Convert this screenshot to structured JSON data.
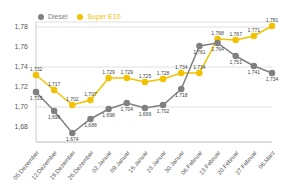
{
  "chart_data": {
    "type": "line",
    "categories": [
      "05.Dezember",
      "12.Dezember",
      "19.Dezember",
      "26.Dezember",
      "02.Januar",
      "09.Januar",
      "16.Januar",
      "23.Januar",
      "30.Januar",
      "06.Februar",
      "13.Februar",
      "20.Februar",
      "27.Februar",
      "06.März"
    ],
    "series": [
      {
        "name": "Super E10",
        "color": "#f2c200",
        "marker": "circle",
        "values": [
          1.732,
          1.717,
          1.702,
          1.707,
          1.729,
          1.729,
          1.725,
          1.728,
          1.734,
          1.734,
          1.768,
          1.767,
          1.771,
          1.781
        ],
        "value_labels": [
          "1,732",
          "1,717",
          "1,702",
          "1,707",
          "1,729",
          "1,729",
          "1,725",
          "1,728",
          "1,734",
          "1,734",
          "1,768",
          "1,767",
          "1,771",
          "1,781"
        ]
      },
      {
        "name": "Diesel",
        "color": "#808080",
        "marker": "circle",
        "values": [
          1.715,
          1.696,
          1.674,
          1.688,
          1.698,
          1.704,
          1.699,
          1.702,
          1.718,
          1.761,
          1.764,
          1.751,
          1.741,
          1.734
        ],
        "value_labels": [
          "1,715",
          "1,696",
          "1,674",
          "1,688",
          "1,698",
          "1,704",
          "1,699",
          "1,702",
          "1,718",
          "1,761",
          "1,764",
          "1,751",
          "1,741",
          "1,734"
        ]
      }
    ],
    "ylim": [
      1.665,
      1.785
    ],
    "yticks": [
      {
        "value": 1.68,
        "label": "1,68"
      },
      {
        "value": 1.7,
        "label": "1,70"
      },
      {
        "value": 1.72,
        "label": "1,72"
      },
      {
        "value": 1.74,
        "label": "1,74"
      },
      {
        "value": 1.76,
        "label": "1,76"
      },
      {
        "value": 1.78,
        "label": "1,78"
      }
    ],
    "grid": true,
    "legend": "top-left",
    "data_labels": true
  }
}
